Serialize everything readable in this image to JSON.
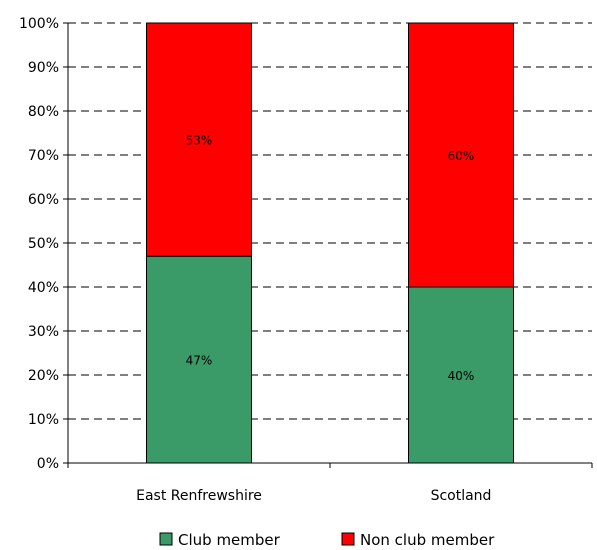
{
  "chart_data": {
    "type": "bar",
    "stacked": true,
    "percent_stacked": true,
    "categories": [
      "East Renfrewshire",
      "Scotland"
    ],
    "series": [
      {
        "name": "Club member",
        "values": [
          47,
          40
        ],
        "labels": [
          "47%",
          "40%"
        ],
        "color": "#3a9a68"
      },
      {
        "name": "Non club member",
        "values": [
          53,
          60
        ],
        "labels": [
          "53%",
          "60%"
        ],
        "color": "#ff0000"
      }
    ],
    "ylim": [
      0,
      100
    ],
    "yticks": [
      0,
      10,
      20,
      30,
      40,
      50,
      60,
      70,
      80,
      90,
      100
    ],
    "ytick_labels": [
      "0%",
      "10%",
      "20%",
      "30%",
      "40%",
      "50%",
      "60%",
      "70%",
      "80%",
      "90%",
      "100%"
    ],
    "grid": true,
    "legend_position": "bottom",
    "title": "",
    "xlabel": "",
    "ylabel": ""
  }
}
